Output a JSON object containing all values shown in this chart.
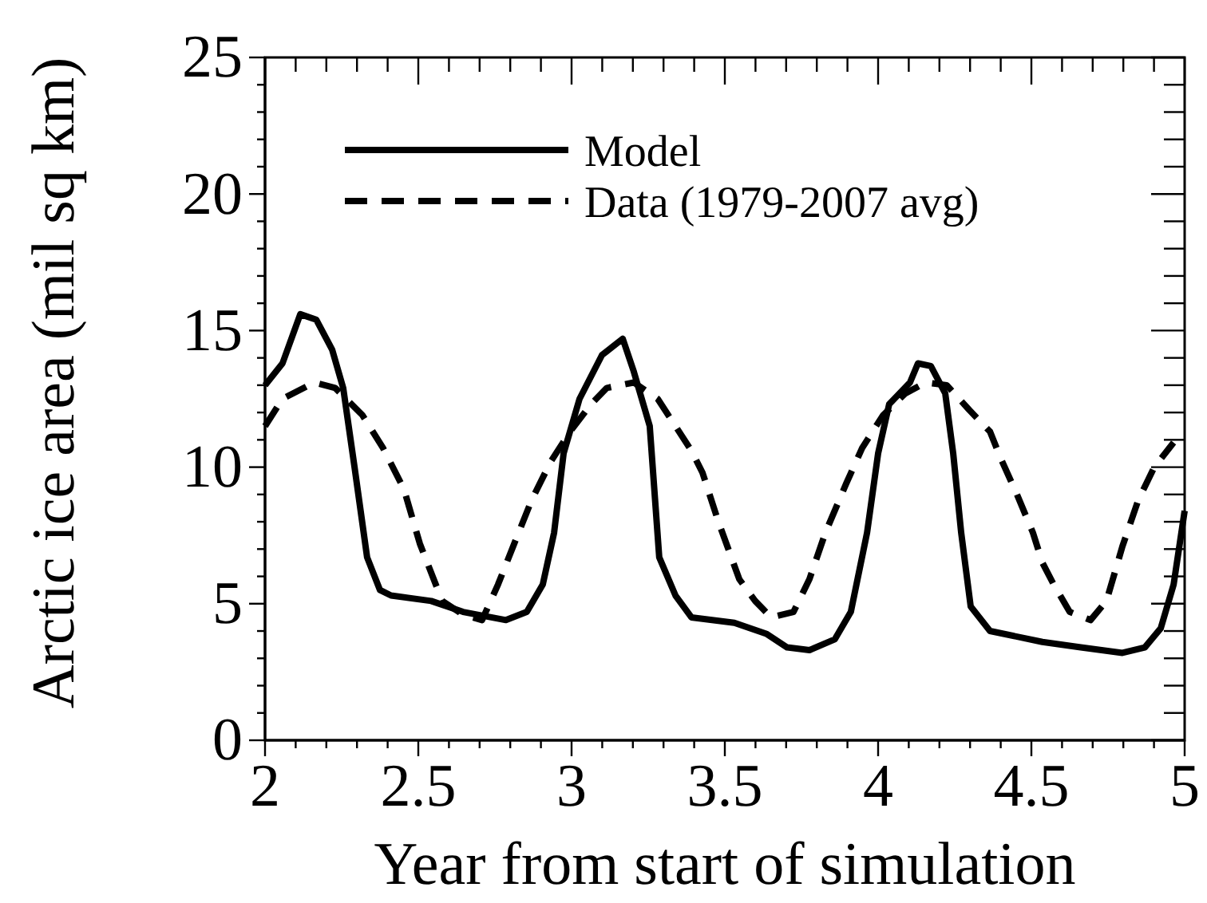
{
  "chart_data": {
    "type": "line",
    "xlabel": "Year from start of simulation",
    "ylabel": "Arctic ice area (mil sq km)",
    "xlim": [
      2,
      5
    ],
    "ylim": [
      0,
      25
    ],
    "xticks": [
      2,
      {
        "value": 2.1,
        "label": null
      },
      {
        "value": 2.2,
        "label": null
      },
      {
        "value": 2.3,
        "label": null
      },
      {
        "value": 2.4,
        "label": null
      },
      2.5,
      {
        "value": 2.6,
        "label": null
      },
      {
        "value": 2.7,
        "label": null
      },
      {
        "value": 2.8,
        "label": null
      },
      {
        "value": 2.9,
        "label": null
      },
      3,
      {
        "value": 3.1,
        "label": null
      },
      {
        "value": 3.2,
        "label": null
      },
      {
        "value": 3.3,
        "label": null
      },
      {
        "value": 3.4,
        "label": null
      },
      3.5,
      {
        "value": 3.6,
        "label": null
      },
      {
        "value": 3.7,
        "label": null
      },
      {
        "value": 3.8,
        "label": null
      },
      {
        "value": 3.9,
        "label": null
      },
      4,
      {
        "value": 4.1,
        "label": null
      },
      {
        "value": 4.2,
        "label": null
      },
      {
        "value": 4.3,
        "label": null
      },
      {
        "value": 4.4,
        "label": null
      },
      4.5,
      {
        "value": 4.6,
        "label": null
      },
      {
        "value": 4.7,
        "label": null
      },
      {
        "value": 4.8,
        "label": null
      },
      {
        "value": 4.9,
        "label": null
      },
      5
    ],
    "yticks": [
      0,
      {
        "value": 1,
        "label": null
      },
      {
        "value": 2,
        "label": null
      },
      {
        "value": 3,
        "label": null
      },
      {
        "value": 4,
        "label": null
      },
      5,
      {
        "value": 6,
        "label": null
      },
      {
        "value": 7,
        "label": null
      },
      {
        "value": 8,
        "label": null
      },
      {
        "value": 9,
        "label": null
      },
      10,
      {
        "value": 11,
        "label": null
      },
      {
        "value": 12,
        "label": null
      },
      {
        "value": 13,
        "label": null
      },
      {
        "value": 14,
        "label": null
      },
      15,
      {
        "value": 16,
        "label": null
      },
      {
        "value": 17,
        "label": null
      },
      {
        "value": 18,
        "label": null
      },
      {
        "value": 19,
        "label": null
      },
      20,
      {
        "value": 21,
        "label": null
      },
      {
        "value": 22,
        "label": null
      },
      {
        "value": 23,
        "label": null
      },
      {
        "value": 24,
        "label": null
      },
      25
    ],
    "grid": false,
    "legend": "top left",
    "series": [
      {
        "name": "Model",
        "color": "#000000",
        "line_style": "solid",
        "x": [
          2.0,
          2.057,
          2.115,
          2.167,
          2.219,
          2.255,
          2.292,
          2.333,
          2.375,
          2.411,
          2.542,
          2.646,
          2.786,
          2.854,
          2.906,
          2.943,
          2.974,
          3.026,
          3.099,
          3.167,
          3.203,
          3.255,
          3.286,
          3.339,
          3.391,
          3.531,
          3.635,
          3.703,
          3.776,
          3.859,
          3.911,
          3.964,
          4.0,
          4.036,
          4.104,
          4.13,
          4.172,
          4.219,
          4.245,
          4.271,
          4.302,
          4.365,
          4.536,
          4.661,
          4.729,
          4.797,
          4.87,
          4.922,
          4.964,
          5.0
        ],
        "values": [
          13.0,
          13.8,
          15.6,
          15.4,
          14.3,
          12.9,
          10.0,
          6.7,
          5.5,
          5.3,
          5.1,
          4.7,
          4.4,
          4.7,
          5.7,
          7.6,
          10.5,
          12.5,
          14.1,
          14.7,
          13.5,
          11.5,
          6.7,
          5.3,
          4.5,
          4.3,
          3.9,
          3.4,
          3.3,
          3.7,
          4.7,
          7.6,
          10.5,
          12.3,
          13.1,
          13.8,
          13.7,
          12.7,
          10.5,
          7.6,
          4.9,
          4.0,
          3.6,
          3.4,
          3.3,
          3.2,
          3.4,
          4.1,
          5.7,
          8.4
        ]
      },
      {
        "name": "Data (1979-2007 avg)",
        "color": "#000000",
        "line_style": "dashed",
        "x": [
          2.0,
          2.057,
          2.161,
          2.229,
          2.318,
          2.385,
          2.453,
          2.505,
          2.578,
          2.646,
          2.708,
          2.76,
          2.813,
          2.87,
          2.932,
          2.995,
          3.063,
          3.115,
          3.203,
          3.281,
          3.339,
          3.391,
          3.427,
          3.479,
          3.547,
          3.599,
          3.651,
          3.724,
          3.776,
          3.828,
          3.896,
          3.948,
          4.016,
          4.089,
          4.156,
          4.224,
          4.297,
          4.365,
          4.401,
          4.453,
          4.505,
          4.536,
          4.573,
          4.625,
          4.693,
          4.745,
          4.797,
          4.849,
          4.901,
          4.964
        ],
        "values": [
          11.5,
          12.5,
          13.1,
          12.9,
          11.9,
          10.7,
          9.2,
          7.2,
          5.1,
          4.6,
          4.4,
          5.7,
          7.2,
          8.8,
          10.2,
          11.3,
          12.3,
          12.9,
          13.1,
          12.5,
          11.5,
          10.6,
          9.8,
          8.0,
          5.9,
          5.1,
          4.5,
          4.7,
          5.9,
          7.6,
          9.4,
          10.7,
          11.9,
          12.7,
          13.1,
          13.0,
          12.1,
          11.3,
          10.3,
          9.0,
          7.6,
          6.5,
          5.7,
          4.7,
          4.4,
          5.1,
          7.1,
          8.8,
          10.0,
          10.9
        ]
      }
    ]
  }
}
